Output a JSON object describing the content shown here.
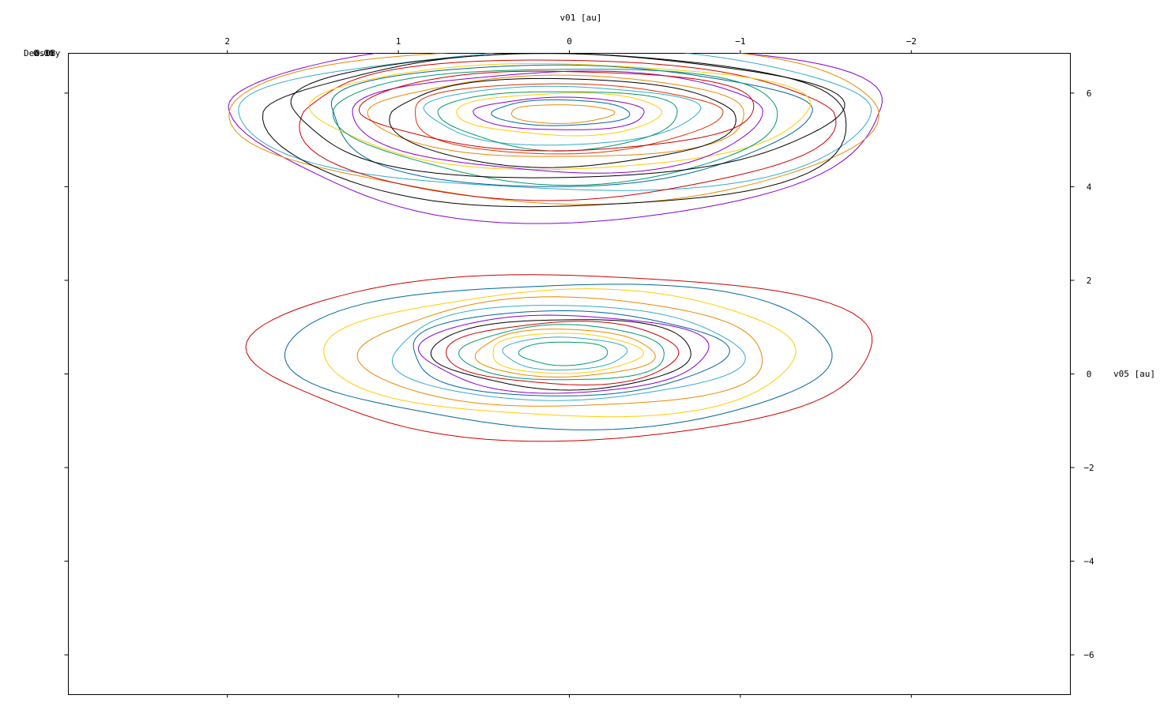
{
  "chart_data": {
    "type": "contour",
    "xlabel": "v01 [au]",
    "ylabel": "v05 [au]",
    "corner_label": "Density",
    "corner_tick_labels": [
      "0.06",
      "0.08"
    ],
    "xlim": [
      2.93,
      -2.93
    ],
    "ylim": [
      -6.85,
      6.85
    ],
    "x_reversed": true,
    "x_ticks": [
      2,
      1,
      0,
      -1,
      -2
    ],
    "x_tick_labels": [
      "2",
      "1",
      "0",
      "−1",
      "−2"
    ],
    "y_ticks": [
      6,
      4,
      2,
      0,
      -2,
      -4,
      -6
    ],
    "y_tick_labels": [
      "6",
      "4",
      "2",
      "0",
      "−2",
      "−4",
      "−6"
    ],
    "grid": false,
    "palette": [
      "#cc0000",
      "#006699",
      "#ffcc00",
      "#e68a00",
      "#33aacc",
      "#8800cc",
      "#000000",
      "#009966",
      "#dd3300"
    ],
    "clusters": [
      {
        "center": [
          0.03,
          0.45
        ],
        "levels": [
          {
            "rx": 1.82,
            "ry_up": 1.72,
            "ry_down": 1.82,
            "color": "#cc0000"
          },
          {
            "rx": 1.6,
            "ry_up": 1.5,
            "ry_down": 1.58,
            "color": "#006699"
          },
          {
            "rx": 1.38,
            "ry_up": 1.32,
            "ry_down": 1.38,
            "color": "#ffcc00"
          },
          {
            "rx": 1.18,
            "ry_up": 1.15,
            "ry_down": 1.18,
            "color": "#e68a00"
          },
          {
            "rx": 1.02,
            "ry_up": 1.01,
            "ry_down": 1.02,
            "color": "#33aacc"
          },
          {
            "rx": 0.92,
            "ry_up": 0.9,
            "ry_down": 0.92,
            "color": "#006699"
          },
          {
            "rx": 0.84,
            "ry_up": 0.82,
            "ry_down": 0.84,
            "color": "#8800cc"
          },
          {
            "rx": 0.76,
            "ry_up": 0.74,
            "ry_down": 0.76,
            "color": "#000000"
          },
          {
            "rx": 0.68,
            "ry_up": 0.66,
            "ry_down": 0.68,
            "color": "#cc0000"
          },
          {
            "rx": 0.6,
            "ry_up": 0.58,
            "ry_down": 0.6,
            "color": "#009966"
          },
          {
            "rx": 0.52,
            "ry_up": 0.5,
            "ry_down": 0.52,
            "color": "#e68a00"
          },
          {
            "rx": 0.44,
            "ry_up": 0.42,
            "ry_down": 0.44,
            "color": "#ffcc00"
          },
          {
            "rx": 0.36,
            "ry_up": 0.34,
            "ry_down": 0.36,
            "color": "#33aacc"
          },
          {
            "rx": 0.26,
            "ry_up": 0.24,
            "ry_down": 0.26,
            "color": "#009966"
          }
        ]
      },
      {
        "center": [
          0.05,
          5.6
        ],
        "levels": [
          {
            "rx": 1.9,
            "ry_up": 1.5,
            "ry_down": 2.3,
            "color": "#8800cc"
          },
          {
            "rx": 1.9,
            "ry_up": 1.4,
            "ry_down": 1.9,
            "color": "#e68a00"
          },
          {
            "rx": 1.85,
            "ry_up": 1.3,
            "ry_down": 1.7,
            "color": "#33aacc"
          },
          {
            "rx": 1.7,
            "ry_up": 1.2,
            "ry_down": 2.1,
            "color": "#000000"
          },
          {
            "rx": 1.55,
            "ry_up": 1.1,
            "ry_down": 1.9,
            "color": "#cc0000"
          },
          {
            "rx": 1.4,
            "ry_up": 1.0,
            "ry_down": 1.6,
            "color": "#006699"
          },
          {
            "rx": 1.45,
            "ry_up": 1.05,
            "ry_down": 1.2,
            "color": "#ffcc00"
          },
          {
            "rx": 1.3,
            "ry_up": 0.95,
            "ry_down": 1.5,
            "color": "#009966"
          },
          {
            "rx": 1.2,
            "ry_up": 0.85,
            "ry_down": 1.3,
            "color": "#8800cc"
          },
          {
            "rx": 1.1,
            "ry_up": 0.75,
            "ry_down": 1.0,
            "color": "#e68a00"
          },
          {
            "rx": 1.0,
            "ry_up": 0.7,
            "ry_down": 1.2,
            "color": "#000000"
          },
          {
            "rx": 0.9,
            "ry_up": 0.6,
            "ry_down": 0.9,
            "color": "#dd3300"
          },
          {
            "rx": 0.8,
            "ry_up": 0.55,
            "ry_down": 0.7,
            "color": "#33aacc"
          },
          {
            "rx": 0.7,
            "ry_up": 0.45,
            "ry_down": 0.8,
            "color": "#009966"
          },
          {
            "rx": 0.6,
            "ry_up": 0.4,
            "ry_down": 0.5,
            "color": "#ffcc00"
          },
          {
            "rx": 0.5,
            "ry_up": 0.3,
            "ry_down": 0.4,
            "color": "#8800cc"
          },
          {
            "rx": 0.4,
            "ry_up": 0.25,
            "ry_down": 0.3,
            "color": "#006699"
          },
          {
            "rx": 0.3,
            "ry_up": 0.15,
            "ry_down": 0.25,
            "color": "#e68a00"
          },
          {
            "rx": 1.6,
            "ry_up": 1.25,
            "ry_down": 1.4,
            "color": "#000000"
          },
          {
            "rx": 1.15,
            "ry_up": 0.9,
            "ry_down": 0.8,
            "color": "#cc0000"
          }
        ]
      }
    ]
  }
}
